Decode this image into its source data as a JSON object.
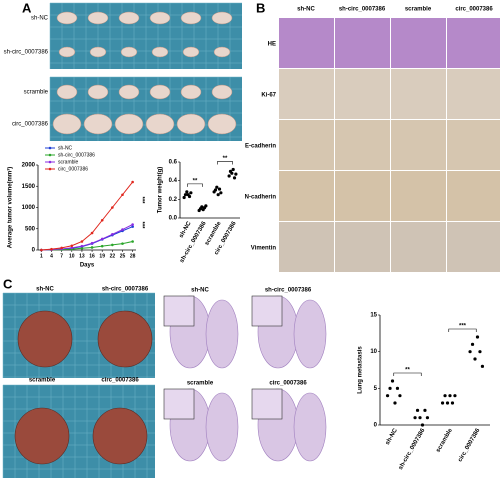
{
  "panel_a": {
    "label": "A",
    "photo_rows": [
      "sh-NC",
      "sh-circ_0007386",
      "scramble",
      "circ_0007386"
    ]
  },
  "panel_b": {
    "label": "B",
    "columns": [
      "sh-NC",
      "sh-circ_0007386",
      "scramble",
      "circ_0007386"
    ],
    "rows": [
      "HE",
      "Ki-67",
      "E-cadherin",
      "N-cadherin",
      "Vimentin"
    ]
  },
  "panel_c": {
    "label": "C",
    "photo_labels": [
      "sh-NC",
      "sh-circ_0007386",
      "scramble",
      "circ_0007386"
    ],
    "histology_labels": [
      "sh-NC",
      "sh-circ_0007386",
      "scramble",
      "circ_0007386"
    ]
  },
  "chart_data": [
    {
      "type": "line",
      "x_label": "Days",
      "y_label": "Average tumor volume(mm³)",
      "x": [
        1,
        4,
        7,
        10,
        13,
        16,
        19,
        22,
        25,
        28
      ],
      "xlim": [
        0,
        29
      ],
      "xticks": [
        1,
        4,
        7,
        10,
        13,
        16,
        19,
        22,
        25,
        28
      ],
      "ylim": [
        0,
        2000
      ],
      "yticks": [
        0,
        500,
        1000,
        1500,
        2000
      ],
      "series": [
        {
          "name": "sh-NC",
          "color": "#1f3fd6",
          "values": [
            0,
            10,
            20,
            40,
            80,
            150,
            250,
            350,
            450,
            550
          ]
        },
        {
          "name": "sh-circ_0007386",
          "color": "#2aa52a",
          "values": [
            0,
            5,
            10,
            20,
            40,
            60,
            90,
            120,
            150,
            200
          ]
        },
        {
          "name": "scramble",
          "color": "#8a2be2",
          "values": [
            0,
            10,
            25,
            50,
            90,
            160,
            260,
            370,
            480,
            600
          ]
        },
        {
          "name": "circ_0007386",
          "color": "#e0261d",
          "values": [
            0,
            20,
            50,
            100,
            200,
            400,
            700,
            1000,
            1300,
            1600
          ]
        }
      ],
      "annotations": [
        "***",
        "***"
      ]
    },
    {
      "type": "dot",
      "y_label": "Tumor weight(g)",
      "categories": [
        "sh-NC",
        "sh-circ_0007386",
        "scramble",
        "circ_0007386"
      ],
      "values": [
        [
          0.22,
          0.25,
          0.28,
          0.25,
          0.23,
          0.27
        ],
        [
          0.08,
          0.1,
          0.12,
          0.09,
          0.11,
          0.13
        ],
        [
          0.28,
          0.3,
          0.33,
          0.25,
          0.31,
          0.27
        ],
        [
          0.45,
          0.5,
          0.48,
          0.52,
          0.43,
          0.47
        ]
      ],
      "ylim": [
        0,
        0.6
      ],
      "yticks": [
        {
          "value": 0,
          "label": "0.0"
        },
        0.2,
        0.4,
        0.6
      ],
      "annotations": [
        "**",
        "**"
      ]
    },
    {
      "type": "dot",
      "y_label": "Lung metastasis",
      "categories": [
        "sh-NC",
        "sh-circ_0007386",
        "scramble",
        "circ_0007386"
      ],
      "values": [
        [
          4,
          5,
          6,
          3,
          5,
          4
        ],
        [
          1,
          2,
          1,
          0,
          2,
          1
        ],
        [
          3,
          4,
          3,
          4,
          3,
          4
        ],
        [
          10,
          11,
          9,
          12,
          10,
          8
        ]
      ],
      "ylim": [
        0,
        15
      ],
      "yticks": [
        0,
        5,
        10,
        15
      ],
      "annotations": [
        "**",
        "***"
      ]
    }
  ]
}
